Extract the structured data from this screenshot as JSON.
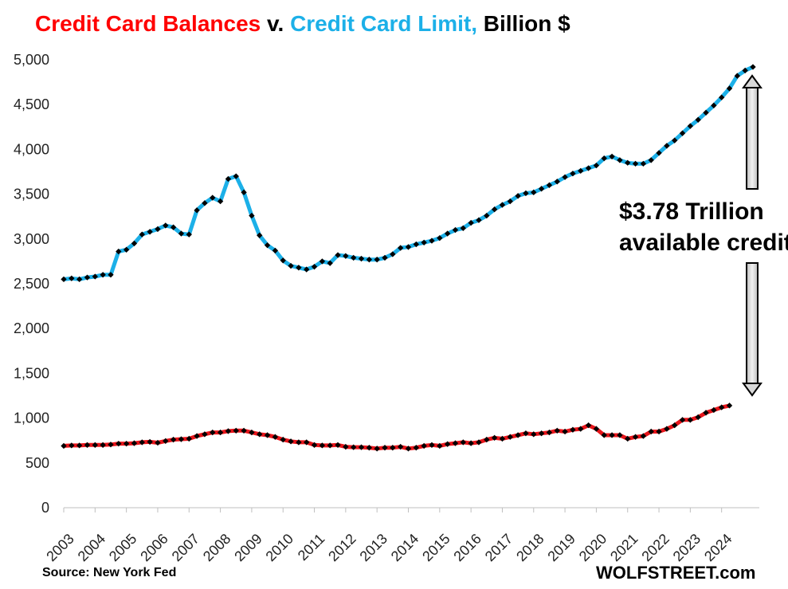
{
  "title": {
    "part1": "Credit Card Balances",
    "part2": " v. ",
    "part3": "Credit Card Limit,",
    "part4": " Billion $",
    "color1": "#ff0000",
    "color2": "#000000",
    "color3": "#1cb0e8",
    "color4": "#000000"
  },
  "source": "Source:  New York Fed",
  "brand": "WOLFSTREET.com",
  "annotation": {
    "line1": "$3.78 Trillion",
    "line2": "available credit"
  },
  "chart_data": {
    "type": "line",
    "ylim": [
      0,
      5000
    ],
    "yticks": [
      "0",
      "500",
      "1,000",
      "1,500",
      "2,000",
      "2,500",
      "3,000",
      "3,500",
      "4,000",
      "4,500",
      "5,000"
    ],
    "xticks": [
      "2003",
      "2004",
      "2005",
      "2006",
      "2007",
      "2008",
      "2009",
      "2010",
      "2011",
      "2012",
      "2013",
      "2014",
      "2015",
      "2016",
      "2017",
      "2018",
      "2019",
      "2020",
      "2021",
      "2022",
      "2023",
      "2024"
    ],
    "x_start": "2003 Q1",
    "series": [
      {
        "color": "#1cb0e8",
        "values": [
          2550,
          2560,
          2550,
          2570,
          2580,
          2600,
          2600,
          2860,
          2880,
          2950,
          3050,
          3080,
          3110,
          3150,
          3130,
          3060,
          3050,
          3320,
          3400,
          3460,
          3420,
          3670,
          3700,
          3520,
          3260,
          3040,
          2930,
          2870,
          2760,
          2700,
          2680,
          2660,
          2690,
          2750,
          2730,
          2820,
          2810,
          2790,
          2780,
          2770,
          2770,
          2790,
          2830,
          2900,
          2910,
          2940,
          2960,
          2980,
          3010,
          3060,
          3100,
          3120,
          3180,
          3210,
          3260,
          3330,
          3380,
          3420,
          3480,
          3510,
          3520,
          3560,
          3600,
          3640,
          3690,
          3730,
          3760,
          3790,
          3820,
          3900,
          3920,
          3880,
          3850,
          3840,
          3840,
          3880,
          3960,
          4040,
          4100,
          4180,
          4260,
          4330,
          4410,
          4490,
          4580,
          4680,
          4820,
          4880,
          4920
        ]
      },
      {
        "color": "#e8151b",
        "values": [
          690,
          695,
          695,
          700,
          700,
          700,
          705,
          715,
          715,
          720,
          730,
          735,
          725,
          745,
          760,
          765,
          770,
          800,
          820,
          840,
          840,
          855,
          860,
          860,
          840,
          820,
          810,
          790,
          760,
          740,
          730,
          730,
          700,
          695,
          695,
          700,
          680,
          675,
          675,
          670,
          660,
          670,
          670,
          680,
          660,
          670,
          690,
          700,
          690,
          710,
          720,
          730,
          720,
          730,
          760,
          780,
          770,
          790,
          810,
          830,
          820,
          830,
          840,
          860,
          850,
          870,
          880,
          920,
          880,
          810,
          810,
          810,
          770,
          790,
          800,
          850,
          850,
          880,
          920,
          980,
          980,
          1010,
          1060,
          1090,
          1120,
          1140
        ]
      }
    ]
  }
}
